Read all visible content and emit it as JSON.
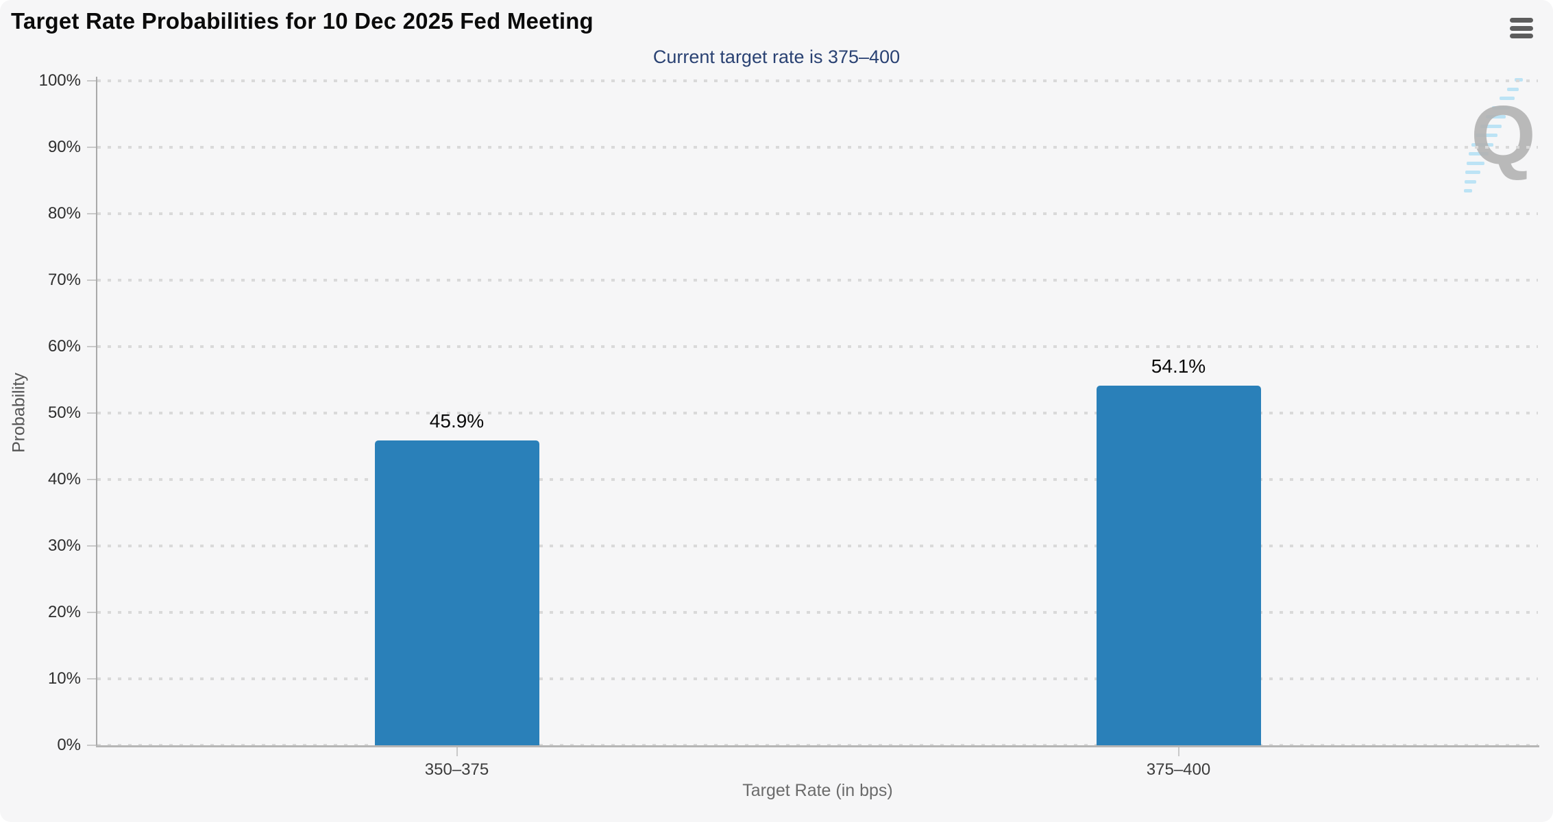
{
  "header": {
    "title": "Target Rate Probabilities for 10 Dec 2025 Fed Meeting",
    "subtitle": "Current target rate is 375–400"
  },
  "toolbar": {
    "menu_icon": "hamburger-menu-icon"
  },
  "watermark": {
    "letter": "Q"
  },
  "chart_data": {
    "type": "bar",
    "title": "Target Rate Probabilities for 10 Dec 2025 Fed Meeting",
    "subtitle": "Current target rate is 375–400",
    "categories": [
      "350–375",
      "375–400"
    ],
    "values": [
      45.9,
      54.1
    ],
    "value_labels": [
      "45.9%",
      "54.1%"
    ],
    "xlabel": "Target Rate (in bps)",
    "ylabel": "Probability",
    "ylim": [
      0,
      100
    ],
    "ytick_step": 10,
    "ytick_labels": [
      "0%",
      "10%",
      "20%",
      "30%",
      "40%",
      "50%",
      "60%",
      "70%",
      "80%",
      "90%",
      "100%"
    ],
    "grid": "horizontal-dotted",
    "legend_position": "none",
    "bar_color": "#2a80b9"
  },
  "colors": {
    "panel_background": "#f6f6f7",
    "bar": "#2a80b9",
    "subtitle_text": "#2a4273",
    "axis_line": "#b5b5b5",
    "gridline_dots": "#d9d9d9",
    "watermark_gray": "#b3b3b3",
    "watermark_blue": "#a8dcf4"
  }
}
